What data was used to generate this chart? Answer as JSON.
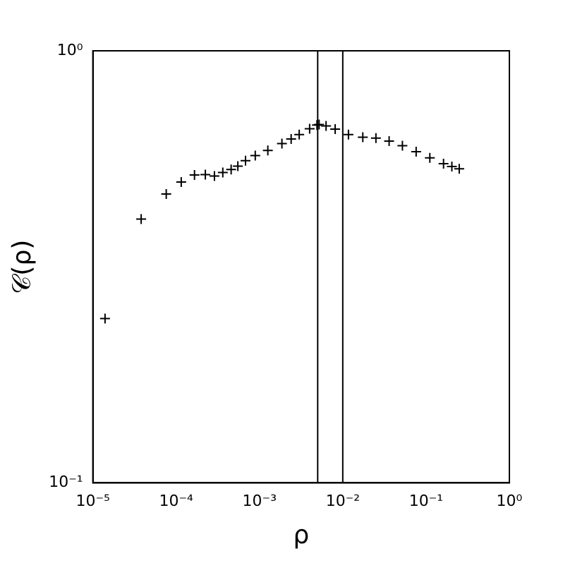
{
  "chart_data": {
    "type": "scatter",
    "xlabel": "ρ",
    "ylabel": "𝒞(ρ)",
    "log": "xy",
    "grid": false,
    "legend": false,
    "marker": "cross",
    "xlim": [
      1e-05,
      1
    ],
    "ylim": [
      0.1,
      1
    ],
    "xticks": [
      {
        "value": 1e-05,
        "label": "10⁻⁵"
      },
      {
        "value": 0.0001,
        "label": "10⁻⁴"
      },
      {
        "value": 0.001,
        "label": "10⁻³"
      },
      {
        "value": 0.01,
        "label": "10⁻²"
      },
      {
        "value": 0.1,
        "label": "10⁻¹"
      },
      {
        "value": 1,
        "label": "10⁰"
      }
    ],
    "yticks": [
      {
        "value": 0.1,
        "label": "10⁻¹"
      },
      {
        "value": 1,
        "label": "10⁰"
      }
    ],
    "ref_lines": [
      {
        "axis": "x",
        "value": 0.005,
        "color": "#000000"
      },
      {
        "axis": "x",
        "value": 0.01,
        "color": "#000000"
      }
    ],
    "series": [
      {
        "color": "#000000",
        "x": [
          1.4e-05,
          3.8e-05,
          7.6e-05,
          0.000115,
          0.000166,
          0.000224,
          0.000288,
          0.000363,
          0.000457,
          0.00055,
          0.00068,
          0.00089,
          0.00126,
          0.00186,
          0.0024,
          0.003,
          0.004,
          0.0049,
          0.0052,
          0.0063,
          0.0081,
          0.0117,
          0.0174,
          0.025,
          0.036,
          0.052,
          0.076,
          0.111,
          0.162,
          0.204,
          0.25
        ],
        "values": [
          0.24,
          0.408,
          0.466,
          0.497,
          0.516,
          0.517,
          0.513,
          0.523,
          0.531,
          0.541,
          0.557,
          0.572,
          0.588,
          0.61,
          0.625,
          0.64,
          0.66,
          0.673,
          0.675,
          0.67,
          0.659,
          0.64,
          0.631,
          0.628,
          0.618,
          0.603,
          0.584,
          0.565,
          0.548,
          0.54,
          0.533
        ]
      }
    ]
  }
}
